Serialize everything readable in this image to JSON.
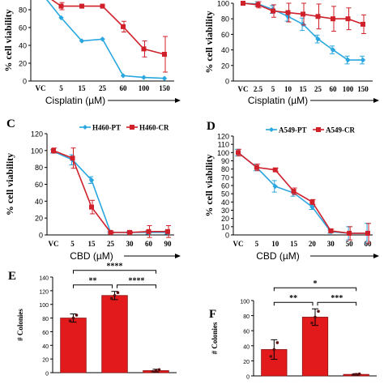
{
  "colors": {
    "blue": "#2aa7e0",
    "red": "#d0202a",
    "bar": "#e31a1c",
    "axis": "#000000"
  },
  "chart_data": [
    {
      "panel": "",
      "type": "line",
      "ylabel": "% cell viability",
      "xlabel": "Cisplatin (µM)",
      "categories": [
        "VC",
        "5",
        "15",
        "25",
        "60",
        "100",
        "150"
      ],
      "ylim": [
        0,
        100
      ],
      "yticks": [
        "0",
        "20",
        "40",
        "60",
        "80"
      ],
      "error_bars": true,
      "series": [
        {
          "color": "blue",
          "values": [
            100,
            71,
            45,
            47,
            6,
            4,
            3
          ],
          "errors": [
            0,
            0,
            0,
            0,
            0,
            0,
            0
          ]
        },
        {
          "color": "red",
          "values": [
            100,
            84,
            84,
            84,
            61,
            36,
            30
          ],
          "errors": [
            0,
            4,
            0,
            0,
            6,
            9,
            20
          ]
        }
      ]
    },
    {
      "panel": "",
      "type": "line",
      "ylabel": "% cell viability",
      "xlabel": "Cisplatin (µM)",
      "categories": [
        "VC",
        "2.5",
        "5",
        "10",
        "15",
        "25",
        "60",
        "100",
        "150"
      ],
      "ylim": [
        0,
        100
      ],
      "yticks": [
        "0",
        "20",
        "40",
        "60",
        "80",
        "100"
      ],
      "error_bars": true,
      "series": [
        {
          "color": "blue",
          "values": [
            100,
            99,
            92,
            83,
            73,
            54,
            40,
            27,
            27
          ],
          "errors": [
            0,
            3,
            5,
            6,
            8,
            5,
            5,
            5,
            5
          ]
        },
        {
          "color": "red",
          "values": [
            100,
            98,
            90,
            88,
            86,
            83,
            80,
            80,
            73
          ],
          "errors": [
            0,
            4,
            8,
            12,
            14,
            16,
            16,
            14,
            12
          ]
        }
      ]
    },
    {
      "panel": "C",
      "type": "line",
      "ylabel": "% cell viability",
      "xlabel": "CBD (µM)",
      "categories": [
        "VC",
        "5",
        "15",
        "25",
        "30",
        "60",
        "90"
      ],
      "ylim": [
        0,
        120
      ],
      "yticks": [
        "0",
        "20",
        "40",
        "60",
        "80",
        "100",
        "120"
      ],
      "legend": [
        "H460-PT",
        "H460-CR"
      ],
      "error_bars": true,
      "series": [
        {
          "name": "H460-PT",
          "color": "blue",
          "values": [
            99,
            89,
            65,
            3,
            3,
            3,
            3
          ],
          "errors": [
            2,
            6,
            4,
            1,
            1,
            2,
            2
          ]
        },
        {
          "name": "H460-CR",
          "color": "red",
          "values": [
            100,
            91,
            33,
            3,
            3,
            4,
            4
          ],
          "errors": [
            3,
            12,
            8,
            1,
            1,
            7,
            7
          ]
        }
      ]
    },
    {
      "panel": "D",
      "type": "line",
      "ylabel": "% cell viability",
      "xlabel": "CBD (µM)",
      "categories": [
        "VC",
        "5",
        "10",
        "15",
        "20",
        "30",
        "50",
        "60"
      ],
      "ylim": [
        0,
        120
      ],
      "yticks": [
        "0",
        "10",
        "20",
        "30",
        "40",
        "50",
        "60",
        "70",
        "80",
        "90",
        "100",
        "110",
        "120"
      ],
      "legend": [
        "A549-PT",
        "A549-CR"
      ],
      "error_bars": true,
      "series": [
        {
          "name": "A549-PT",
          "color": "blue",
          "values": [
            100,
            82,
            59,
            51,
            34,
            4,
            2,
            2
          ],
          "errors": [
            4,
            4,
            7,
            4,
            3,
            2,
            8,
            12
          ]
        },
        {
          "name": "A549-CR",
          "color": "red",
          "values": [
            100,
            82,
            79,
            53,
            40,
            5,
            2,
            2
          ],
          "errors": [
            4,
            4,
            2,
            4,
            3,
            2,
            8,
            12
          ]
        }
      ]
    },
    {
      "panel": "E",
      "type": "bar",
      "ylabel": "# Colonies",
      "ylim": [
        0,
        140
      ],
      "yticks": [
        "0",
        "20",
        "40",
        "60",
        "80",
        "100",
        "120",
        "140"
      ],
      "values": [
        80,
        113,
        3
      ],
      "errors": [
        6,
        6,
        2
      ],
      "significance": [
        {
          "from": 0,
          "to": 1,
          "label": "**"
        },
        {
          "from": 1,
          "to": 2,
          "label": "****"
        },
        {
          "from": 0,
          "to": 2,
          "label": "****"
        }
      ]
    },
    {
      "panel": "F",
      "type": "bar",
      "ylabel": "# Colonies",
      "ylim": [
        0,
        100
      ],
      "yticks": [
        "0",
        "20",
        "40",
        "60",
        "80",
        "100"
      ],
      "values": [
        35,
        78,
        2
      ],
      "errors": [
        13,
        11,
        1
      ],
      "significance": [
        {
          "from": 0,
          "to": 1,
          "label": "**"
        },
        {
          "from": 1,
          "to": 2,
          "label": "***"
        },
        {
          "from": 0,
          "to": 2,
          "label": "*"
        }
      ]
    }
  ]
}
